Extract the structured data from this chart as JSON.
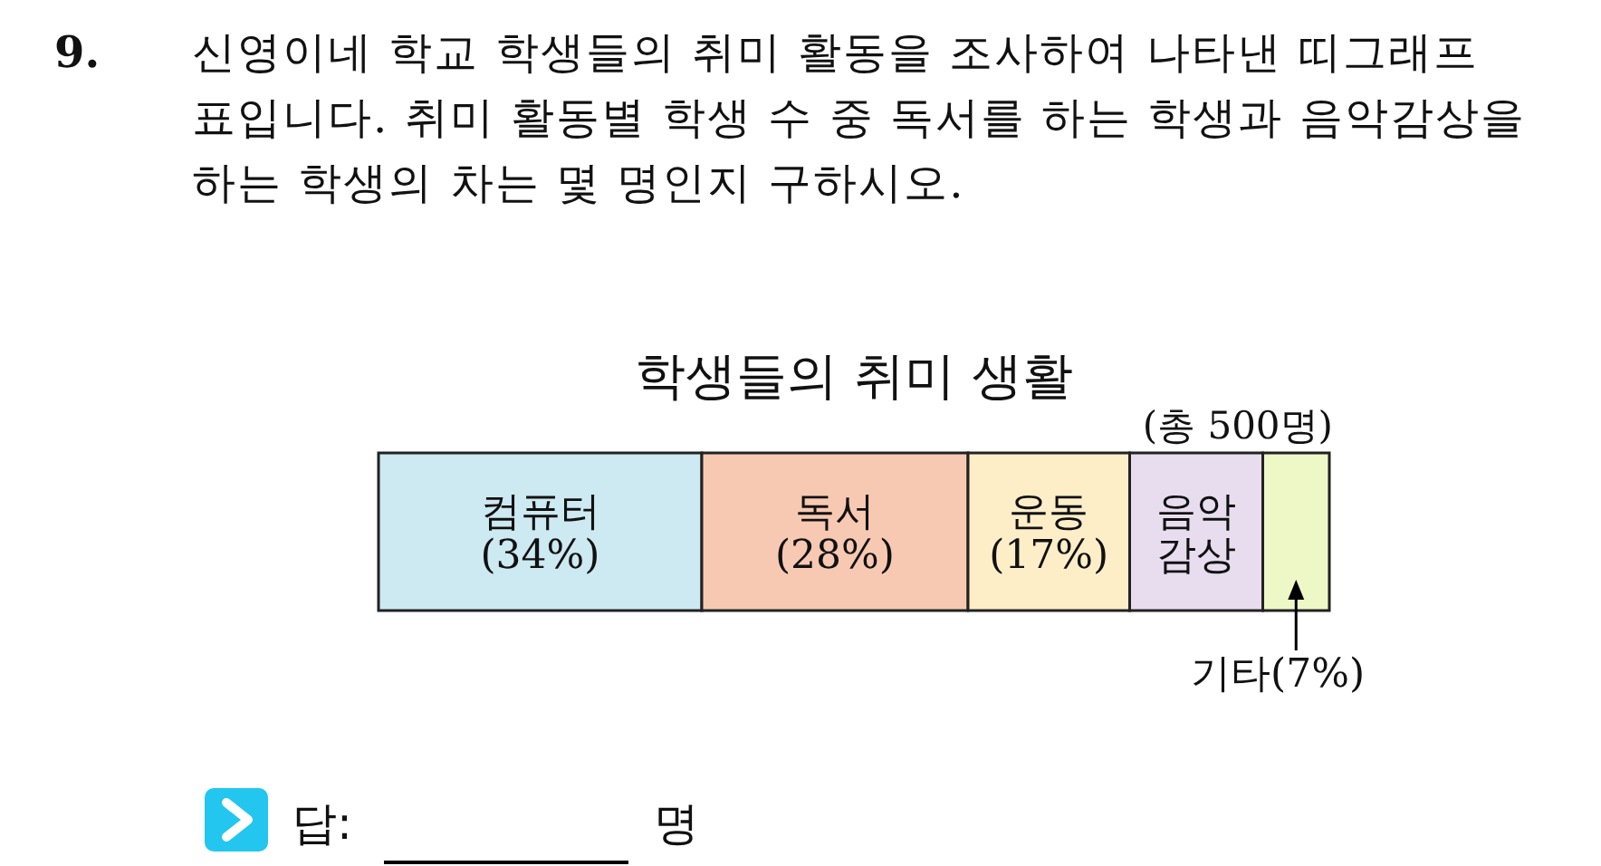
{
  "chart_data": {
    "type": "bar",
    "orientation": "horizontal",
    "stacked": true,
    "title": "학생들의 취미 생활",
    "subtitle": "(총 500명)",
    "categories": [
      null
    ],
    "xlim": [
      0,
      100
    ],
    "series": [
      {
        "name": "컴퓨터",
        "color": "#cde9f1",
        "values": [
          34
        ],
        "value_labels": [
          "(34%)"
        ]
      },
      {
        "name": "독서",
        "color": "#f8c9b2",
        "values": [
          28
        ],
        "value_labels": [
          "(28%)"
        ]
      },
      {
        "name": "운동",
        "color": "#fdeec8",
        "values": [
          17
        ],
        "value_labels": [
          "(17%)"
        ]
      },
      {
        "name": "음악감상",
        "color": "#e8ddef",
        "values": [
          14
        ],
        "value_labels": [
          null
        ]
      },
      {
        "name": "기타",
        "color": "#eef7c6",
        "values": [
          7
        ],
        "value_labels": [
          "(7%)"
        ]
      }
    ],
    "annotations": [
      "9.",
      "신영이네 학교 학생들의 취미 활동을 조사하여 나타낸 띠그래프 표입니다. 취미 활동별 학생 수 중 독서를 하는 학생과 음악감상을 하는 학생의 차는 몇 명인지 구하시오.",
      "답:",
      "명"
    ]
  }
}
